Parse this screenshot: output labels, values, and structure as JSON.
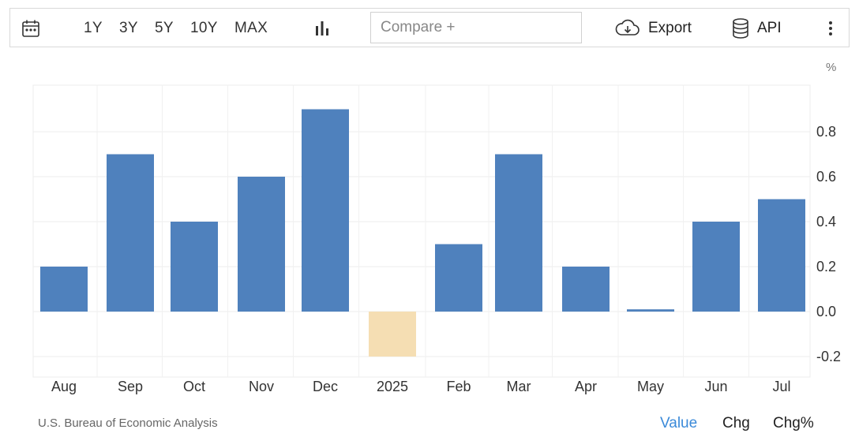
{
  "toolbar": {
    "ranges": [
      "1Y",
      "3Y",
      "5Y",
      "10Y",
      "MAX"
    ],
    "compare_placeholder": "Compare +",
    "export_label": "Export",
    "api_label": "API",
    "icons": {
      "calendar": "calendar-icon",
      "chart_type": "bar-chart-icon",
      "export": "cloud-download-icon",
      "api": "database-icon",
      "more": "vertical-dots-icon"
    }
  },
  "chart_data": {
    "type": "bar",
    "unit_label": "%",
    "categories": [
      "Aug",
      "Sep",
      "Oct",
      "Nov",
      "Dec",
      "2025",
      "Feb",
      "Mar",
      "Apr",
      "May",
      "Jun",
      "Jul"
    ],
    "values": [
      0.2,
      0.7,
      0.4,
      0.6,
      0.9,
      -0.2,
      0.3,
      0.7,
      0.2,
      0.01,
      0.4,
      0.5
    ],
    "ylim": [
      -0.3,
      1.0
    ],
    "yticks": [
      "0.8",
      "0.6",
      "0.4",
      "0.2",
      "0.0",
      "-0.2"
    ],
    "ytick_values": [
      0.8,
      0.6,
      0.4,
      0.2,
      0.0,
      -0.2
    ],
    "grid": true,
    "colors": {
      "positive": "#4f81bd",
      "negative": "#f5deb3"
    }
  },
  "footer": {
    "source": "U.S. Bureau of Economic Analysis",
    "modes": [
      "Value",
      "Chg",
      "Chg%"
    ],
    "active_mode": "Value",
    "active_color": "#3b8ad9"
  }
}
